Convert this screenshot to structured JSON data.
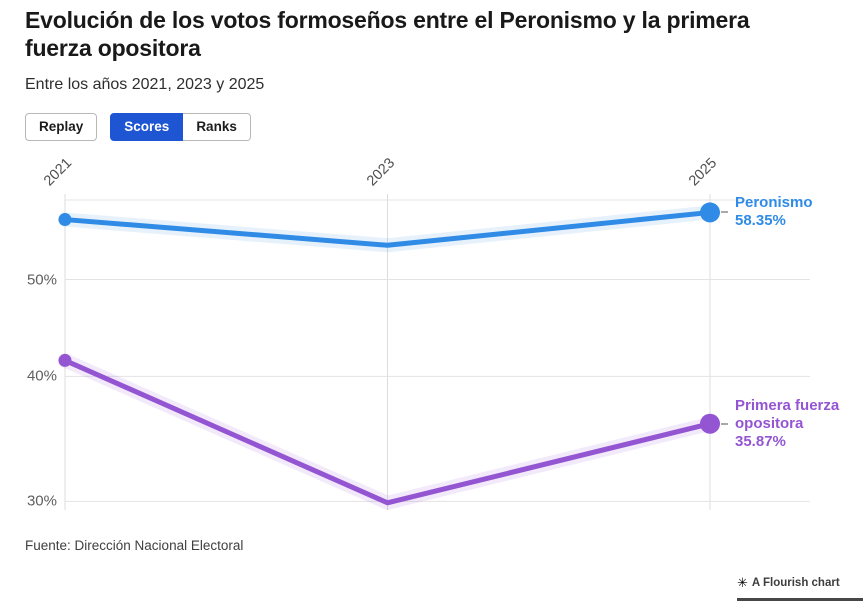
{
  "header": {
    "title": "Evolución de los votos formoseños entre el Peronismo y la primera fuerza opositora",
    "subtitle": "Entre los años 2021, 2023 y 2025"
  },
  "controls": {
    "replay_label": "Replay",
    "tabs": [
      {
        "label": "Scores",
        "active": true
      },
      {
        "label": "Ranks",
        "active": false
      }
    ],
    "active_tab_color": "#1d55d2"
  },
  "chart_data": {
    "type": "line",
    "x": [
      "2021",
      "2023",
      "2025"
    ],
    "y_ticks": [
      "50%",
      "40%",
      "30%"
    ],
    "y_scale": "log",
    "ylim": [
      29.5,
      60.5
    ],
    "grid": true,
    "legend_position": "end-of-line",
    "series": [
      {
        "name": "Peronismo",
        "color": "#2f8be5",
        "values": [
          57.4,
          54.1,
          58.35
        ],
        "end_value_label": "58.35%"
      },
      {
        "name": "Primera fuerza opositora",
        "color": "#9455d2",
        "values": [
          41.5,
          29.9,
          35.87
        ],
        "end_value_label": "35.87%"
      }
    ]
  },
  "footer": {
    "source": "Fuente: Dirección Nacional Electoral",
    "credit_icon": "✳",
    "credit_label": "A Flourish chart"
  }
}
